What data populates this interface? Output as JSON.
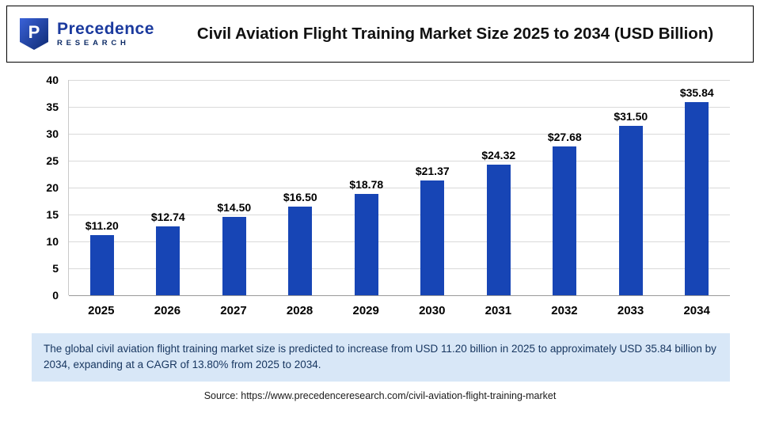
{
  "header": {
    "logo": {
      "name": "Precedence",
      "sub": "RESEARCH",
      "monogram": "P"
    },
    "title": "Civil Aviation Flight Training Market Size 2025 to 2034 (USD Billion)"
  },
  "chart_data": {
    "type": "bar",
    "title": "Civil Aviation Flight Training Market Size 2025 to 2034 (USD Billion)",
    "categories": [
      "2025",
      "2026",
      "2027",
      "2028",
      "2029",
      "2030",
      "2031",
      "2032",
      "2033",
      "2034"
    ],
    "values": [
      11.2,
      12.74,
      14.5,
      16.5,
      18.78,
      21.37,
      24.32,
      27.68,
      31.5,
      35.84
    ],
    "value_labels": [
      "$11.20",
      "$12.74",
      "$14.50",
      "$16.50",
      "$18.78",
      "$21.37",
      "$24.32",
      "$27.68",
      "$31.50",
      "$35.84"
    ],
    "xlabel": "",
    "ylabel": "",
    "ylim": [
      0,
      40
    ],
    "ytick_step": 5,
    "ytick_labels": [
      "0",
      "5",
      "10",
      "15",
      "20",
      "25",
      "30",
      "35",
      "40"
    ],
    "grid": true,
    "legend_position": "none",
    "bar_color": "#1745b5"
  },
  "caption": {
    "text": "The global civil aviation flight training market size is predicted to increase from USD 11.20 billion in 2025 to approximately USD 35.84 billion by 2034, expanding at a CAGR of 13.80% from 2025 to 2034."
  },
  "source": {
    "text": "Source: https://www.precedenceresearch.com/civil-aviation-flight-training-market"
  }
}
